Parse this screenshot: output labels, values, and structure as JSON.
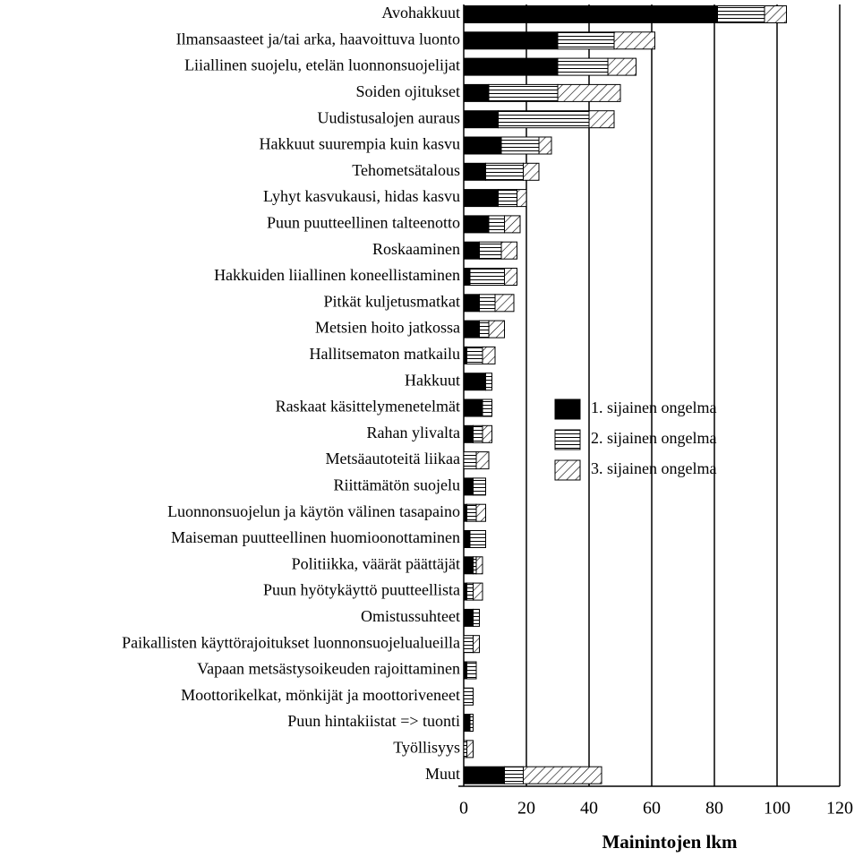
{
  "chart_data": {
    "type": "stacked-barh",
    "xlabel": "Mainintojen lkm",
    "categories": [
      "Avohakkuut",
      "Ilmansaasteet ja/tai arka, haavoittuva luonto",
      "Liiallinen suojelu, etelän luonnonsuojelijat",
      "Soiden ojitukset",
      "Uudistusalojen auraus",
      "Hakkuut suurempia kuin kasvu",
      "Tehometsätalous",
      "Lyhyt kasvukausi, hidas kasvu",
      "Puun puutteellinen talteenotto",
      "Roskaaminen",
      "Hakkuiden liiallinen koneellistaminen",
      "Pitkät kuljetusmatkat",
      "Metsien hoito jatkossa",
      "Hallitsematon matkailu",
      "Hakkuut",
      "Raskaat käsittelymenetelmät",
      "Rahan ylivalta",
      "Metsäautoteitä liikaa",
      "Riittämätön suojelu",
      "Luonnonsuojelun ja käytön välinen tasapaino",
      "Maiseman puutteellinen huomioonottaminen",
      "Politiikka, väärät päättäjät",
      "Puun hyötykäyttö puutteellista",
      "Omistussuhteet",
      "Paikallisten käyttörajoitukset luonnonsuojelualueilla",
      "Vapaan metsästysoikeuden rajoittaminen",
      "Moottorikelkat, mönkijät ja moottoriveneet",
      "Puun hintakiistat => tuonti",
      "Työllisyys",
      "Muut"
    ],
    "series": [
      {
        "name": "1. sijainen ongelma",
        "color": "#000000",
        "pattern": "solid",
        "values": [
          81,
          30,
          30,
          8,
          11,
          12,
          7,
          11,
          8,
          5,
          2,
          5,
          5,
          1,
          7,
          6,
          3,
          0,
          3,
          1,
          2,
          3,
          1,
          3,
          0,
          1,
          0,
          2,
          0,
          13
        ]
      },
      {
        "name": "2. sijainen ongelma",
        "color": "#ffffff",
        "pattern": "horizontal",
        "values": [
          15,
          18,
          16,
          22,
          29,
          12,
          12,
          6,
          5,
          7,
          11,
          5,
          3,
          5,
          2,
          3,
          3,
          4,
          4,
          3,
          5,
          1,
          2,
          2,
          3,
          3,
          3,
          1,
          1,
          6
        ]
      },
      {
        "name": "3. sijainen ongelma",
        "color": "#ffffff",
        "pattern": "diagonal",
        "values": [
          7,
          13,
          9,
          20,
          8,
          4,
          5,
          3,
          5,
          5,
          4,
          6,
          5,
          4,
          0,
          0,
          3,
          4,
          0,
          3,
          0,
          2,
          3,
          0,
          2,
          0,
          0,
          0,
          2,
          25
        ]
      }
    ],
    "xlim": [
      0,
      120
    ],
    "xticks": [
      0,
      20,
      40,
      60,
      80,
      100,
      120
    ],
    "grid": true,
    "legend": "right"
  }
}
